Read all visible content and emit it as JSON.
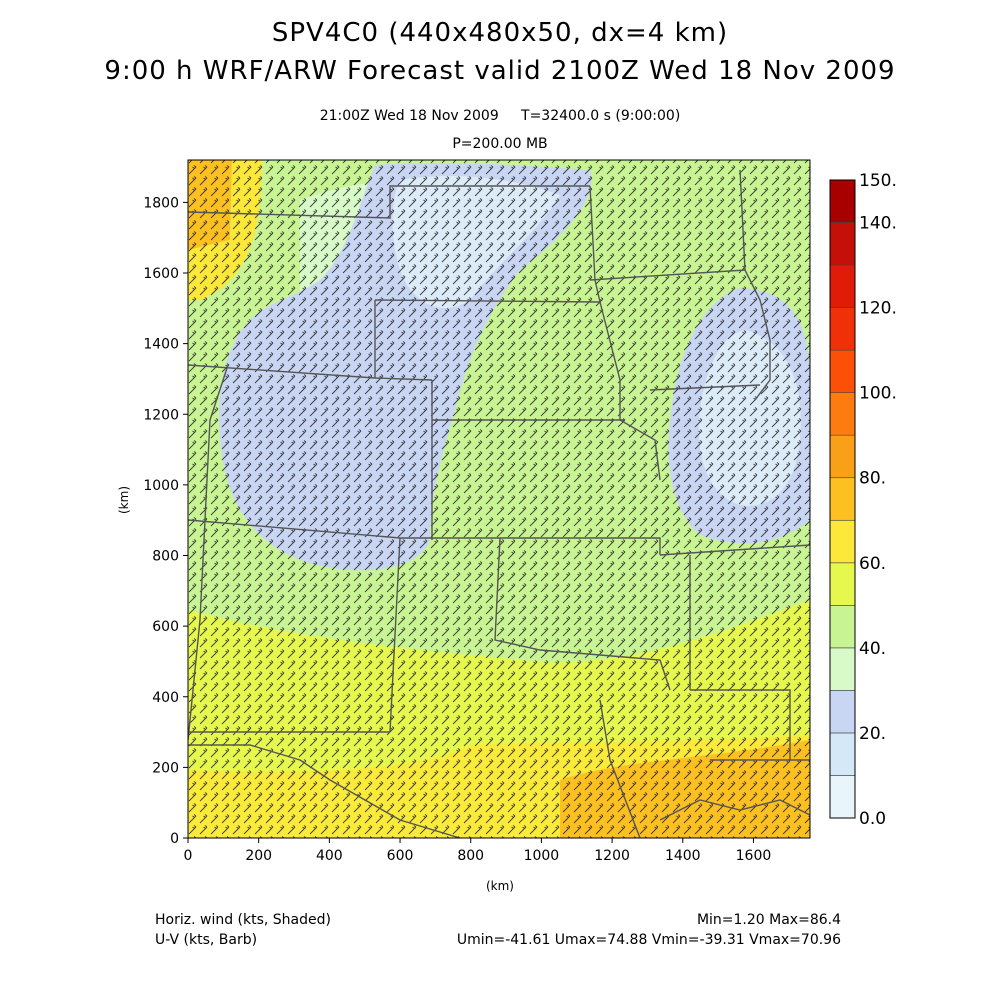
{
  "title": {
    "line1": "SPV4C0 (440x480x50, dx=4 km)",
    "line2": "9:00 h WRF/ARW Forecast valid 2100Z Wed 18 Nov 2009"
  },
  "subtitle": {
    "time": "21:00Z Wed 18 Nov 2009",
    "elapsed": "T=32400.0 s (9:00:00)",
    "level": "P=200.00 MB"
  },
  "chart_data": {
    "type": "heatmap",
    "description_fields": [
      "Horiz. wind (kts, Shaded)",
      "U-V (kts, Barb)"
    ],
    "xlabel": "(km)",
    "ylabel": "(km)",
    "xlim": [
      0,
      1760
    ],
    "ylim": [
      0,
      1920
    ],
    "x_ticks": [
      0,
      200,
      400,
      600,
      800,
      1000,
      1200,
      1400,
      1600
    ],
    "y_ticks": [
      0,
      200,
      400,
      600,
      800,
      1000,
      1200,
      1400,
      1600,
      1800
    ],
    "colorbar": {
      "levels": [
        0,
        10,
        20,
        30,
        40,
        50,
        60,
        70,
        80,
        90,
        100,
        110,
        120,
        130,
        140,
        150
      ],
      "labels": [
        "0.0",
        "20.",
        "40.",
        "60.",
        "80.",
        "100.",
        "120.",
        "140.",
        "150."
      ],
      "label_values": [
        0,
        20,
        40,
        60,
        80,
        100,
        120,
        140,
        150
      ],
      "colors": [
        "#e8f6fc",
        "#d4e8f8",
        "#c8d6f4",
        "#d8fac8",
        "#c8f494",
        "#e6f84e",
        "#fce838",
        "#fcc020",
        "#f8a018",
        "#fc7c10",
        "#fc5008",
        "#f03008",
        "#e01c08",
        "#c41008",
        "#a80000"
      ]
    },
    "stats": {
      "min": "Min=1.20",
      "max": "Max=86.4",
      "umin": "Umin=-41.61",
      "umax": "Umax=74.88",
      "vmin": "Vmin=-39.31",
      "vmax": "Vmax=70.96"
    }
  },
  "footer": {
    "left1": "Horiz. wind (kts, Shaded)",
    "left2": "U-V (kts, Barb)",
    "right1": "Min=1.20 Max=86.4",
    "right2": "Umin=-41.61 Umax=74.88 Vmin=-39.31 Vmax=70.96"
  }
}
